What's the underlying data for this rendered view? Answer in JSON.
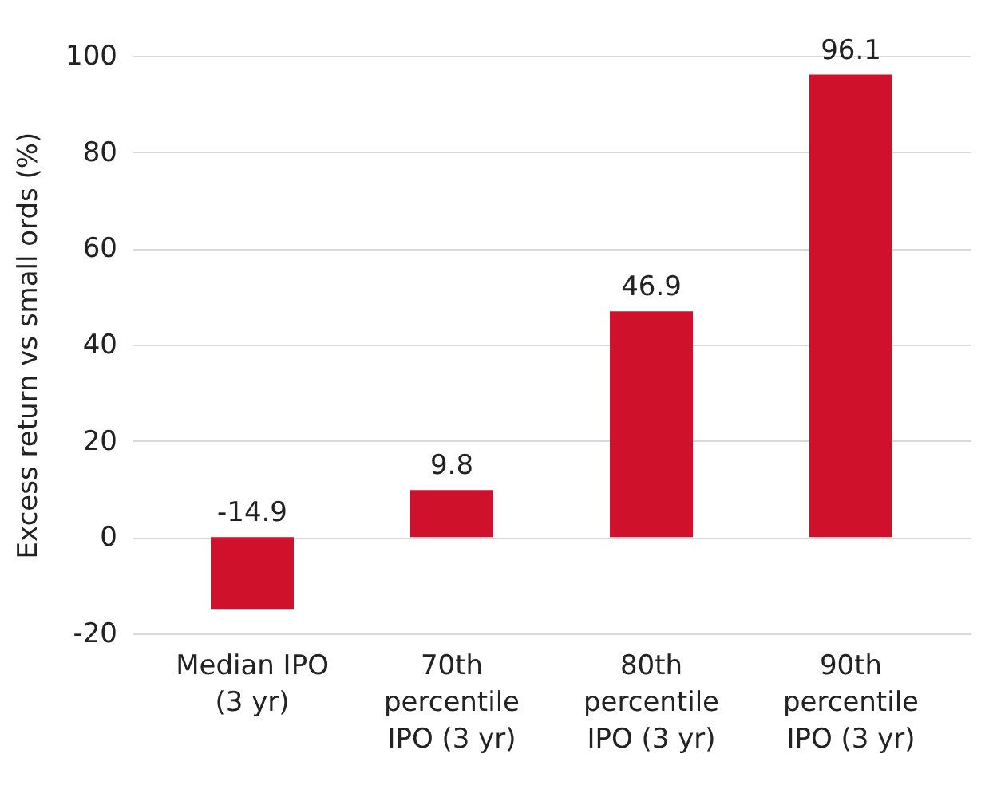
{
  "chart_data": {
    "type": "bar",
    "ylabel": "Excess return vs small ords (%)",
    "categories": [
      "Median IPO (3 yr)",
      "70th percentile IPO (3 yr)",
      "80th percentile IPO (3 yr)",
      "90th percentile IPO (3 yr)"
    ],
    "values": [
      -14.9,
      9.8,
      46.9,
      96.1
    ],
    "color": "#d0112b",
    "ylim": [
      -20,
      100
    ],
    "yticks": [
      -20,
      0,
      20,
      40,
      60,
      80,
      100
    ],
    "grid": "y",
    "data_labels": true
  }
}
